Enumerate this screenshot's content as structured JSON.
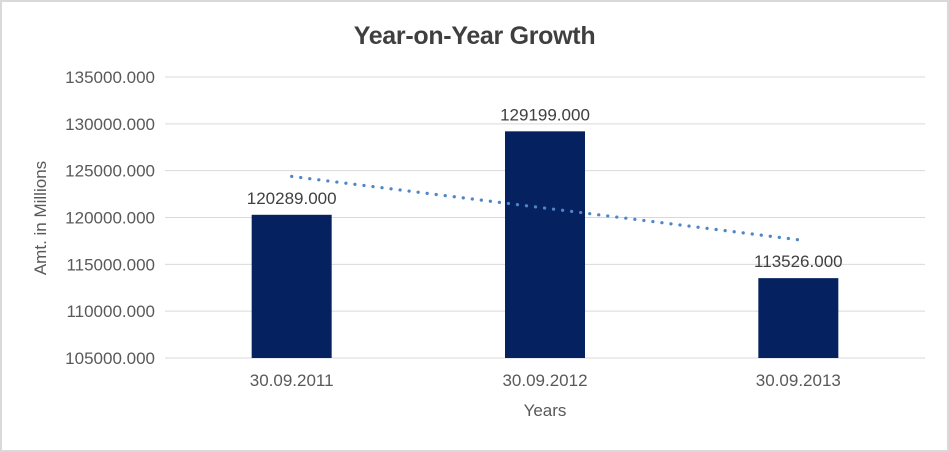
{
  "frame": {
    "background": "#ffffff",
    "border_color": "#d9d9d9"
  },
  "chart_data": {
    "type": "bar",
    "title": "Year-on-Year Growth",
    "xlabel": "Years",
    "ylabel": "Amt. in Millions",
    "categories": [
      "30.09.2011",
      "30.09.2012",
      "30.09.2013"
    ],
    "values": [
      120289,
      129199,
      113526
    ],
    "data_labels": [
      "120289.000",
      "129199.000",
      "113526.000"
    ],
    "ylim": [
      105000,
      135000
    ],
    "y_tick_step": 5000,
    "y_tick_labels": [
      "105000.000",
      "110000.000",
      "115000.000",
      "120000.000",
      "125000.000",
      "130000.000",
      "135000.000"
    ],
    "grid": true,
    "legend": "none",
    "trendline": {
      "type": "linear",
      "style": "dotted",
      "endpoint_values": [
        124386,
        117623
      ]
    },
    "colors": {
      "bar": "#05215f",
      "trendline": "#4f86c8",
      "gridline": "#d9d9d9",
      "axis_text": "#595959",
      "data_label_text": "#404040",
      "title_text": "#3f3f3f"
    }
  }
}
